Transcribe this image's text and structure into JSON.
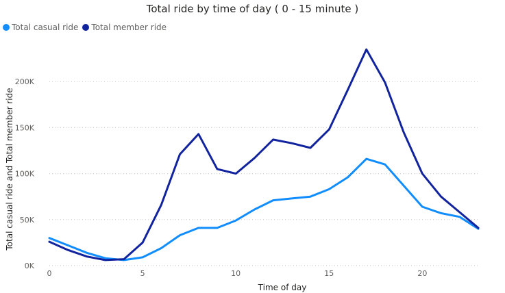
{
  "chart_data": {
    "type": "line",
    "title": "Total ride by time of day ( 0 - 15 minute )",
    "xlabel": "Time of day",
    "ylabel": "Total casual ride and Total member ride",
    "xlim": [
      0,
      23
    ],
    "ylim": [
      0,
      250000
    ],
    "x_ticks": [
      0,
      5,
      10,
      15,
      20
    ],
    "x_tick_labels": [
      "0",
      "5",
      "10",
      "15",
      "20"
    ],
    "y_ticks": [
      0,
      50000,
      100000,
      150000,
      200000
    ],
    "y_tick_labels": [
      "0K",
      "50K",
      "100K",
      "150K",
      "200K"
    ],
    "grid": true,
    "legend_position": "top-left",
    "x": [
      0,
      1,
      2,
      3,
      4,
      5,
      6,
      7,
      8,
      9,
      10,
      11,
      12,
      13,
      14,
      15,
      16,
      17,
      18,
      19,
      20,
      21,
      22,
      23
    ],
    "series": [
      {
        "name": "Total casual ride",
        "color": "#118dff",
        "values": [
          30000,
          22000,
          14000,
          8000,
          6000,
          9000,
          19000,
          33000,
          41000,
          41000,
          49000,
          61000,
          71000,
          73000,
          75000,
          83000,
          96000,
          116000,
          110000,
          87000,
          64000,
          57000,
          53000,
          40000
        ]
      },
      {
        "name": "Total member ride",
        "color": "#12239e",
        "values": [
          26000,
          17000,
          10000,
          6000,
          7000,
          25000,
          66000,
          121000,
          143000,
          105000,
          100000,
          117000,
          137000,
          133000,
          128000,
          148000,
          191000,
          235000,
          199000,
          145000,
          100000,
          75000,
          58000,
          41000
        ]
      }
    ]
  }
}
